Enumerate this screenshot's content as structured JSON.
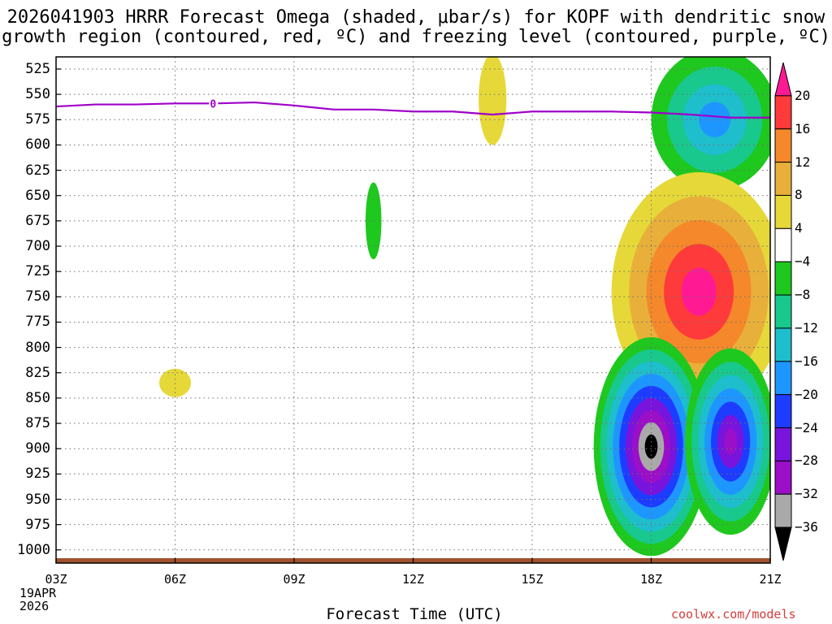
{
  "title_line1": "2026041903 HRRR Forecast Omega (shaded, μbar/s) for KOPF with dendritic snow",
  "title_line2": "growth region (contoured, red, ºC) and freezing level (contoured, purple, ºC)",
  "xlabel": "Forecast Time (UTC)",
  "credit": "coolwx.com/models",
  "date_label": {
    "day": "19APR",
    "year": "2026"
  },
  "freezing_label": "0",
  "colors": {
    "freezing_line": "#9f00c8",
    "terrain": "#a0522d",
    "grid": "#707070"
  },
  "chart_data": {
    "type": "heatmap",
    "x_unit": "hours since 03Z",
    "xlim": [
      0,
      18
    ],
    "y_unit": "hPa",
    "ylim": [
      1013,
      513
    ],
    "x_ticks": [
      {
        "value": 0,
        "label": "03Z"
      },
      {
        "value": 3,
        "label": "06Z"
      },
      {
        "value": 6,
        "label": "09Z"
      },
      {
        "value": 9,
        "label": "12Z"
      },
      {
        "value": 12,
        "label": "15Z"
      },
      {
        "value": 15,
        "label": "18Z"
      },
      {
        "value": 18,
        "label": "21Z"
      }
    ],
    "y_ticks": [
      525,
      550,
      575,
      600,
      625,
      650,
      675,
      700,
      725,
      750,
      775,
      800,
      825,
      850,
      875,
      900,
      925,
      950,
      975,
      1000
    ],
    "colorbar": {
      "levels": [
        20,
        16,
        12,
        8,
        4,
        -4,
        -8,
        -12,
        -16,
        -20,
        -24,
        -28,
        -32,
        -36
      ],
      "labels": [
        "20",
        "16",
        "12",
        "8",
        "4",
        "−4",
        "−8",
        "−12",
        "−16",
        "−20",
        "−24",
        "−28",
        "−32",
        "−36"
      ],
      "colors": [
        "#ff1a94",
        "#ff3a3a",
        "#f4882a",
        "#e8b03a",
        "#e6d838",
        "#ffffff",
        "#1ec81e",
        "#19c88c",
        "#1ebecd",
        "#1e96ff",
        "#1e3cff",
        "#7814dc",
        "#9b0fc8",
        "#a9a9a9",
        "#000000"
      ]
    },
    "freezing_level": {
      "label": "0 ºC",
      "x": [
        0,
        1,
        2,
        3,
        4,
        5,
        6,
        7,
        8,
        9,
        10,
        11,
        12,
        13,
        14,
        15,
        16,
        17,
        18
      ],
      "y": [
        562,
        560,
        560,
        559,
        559,
        558,
        561,
        565,
        565,
        567,
        567,
        570,
        567,
        567,
        567,
        568,
        570,
        573,
        573
      ]
    },
    "omega_features": [
      {
        "x_center": 3.0,
        "y_center": 835,
        "x_halfwidth": 0.4,
        "y_halfwidth": 14,
        "levels": [
          6
        ]
      },
      {
        "x_center": 8.0,
        "y_center": 675,
        "x_halfwidth": 0.2,
        "y_halfwidth": 38,
        "levels": [
          -6
        ]
      },
      {
        "x_center": 11.0,
        "y_center": 555,
        "x_halfwidth": 0.35,
        "y_halfwidth": 45,
        "levels": [
          6
        ]
      },
      {
        "x_center": 16.6,
        "y_center": 575,
        "x_halfwidth": 1.6,
        "y_halfwidth": 70,
        "levels": [
          -6,
          -10,
          -14,
          -18
        ]
      },
      {
        "x_center": 16.2,
        "y_center": 745,
        "x_halfwidth": 2.2,
        "y_halfwidth": 118,
        "levels": [
          6,
          10,
          14,
          18,
          22
        ]
      },
      {
        "x_center": 15.0,
        "y_center": 898,
        "x_halfwidth": 1.45,
        "y_halfwidth": 108,
        "levels": [
          -6,
          -10,
          -14,
          -18,
          -22,
          -26,
          -30,
          -34,
          -38
        ]
      },
      {
        "x_center": 17.0,
        "y_center": 893,
        "x_halfwidth": 1.15,
        "y_halfwidth": 92,
        "levels": [
          -6,
          -10,
          -14,
          -18,
          -22,
          -26,
          -30
        ]
      }
    ]
  }
}
